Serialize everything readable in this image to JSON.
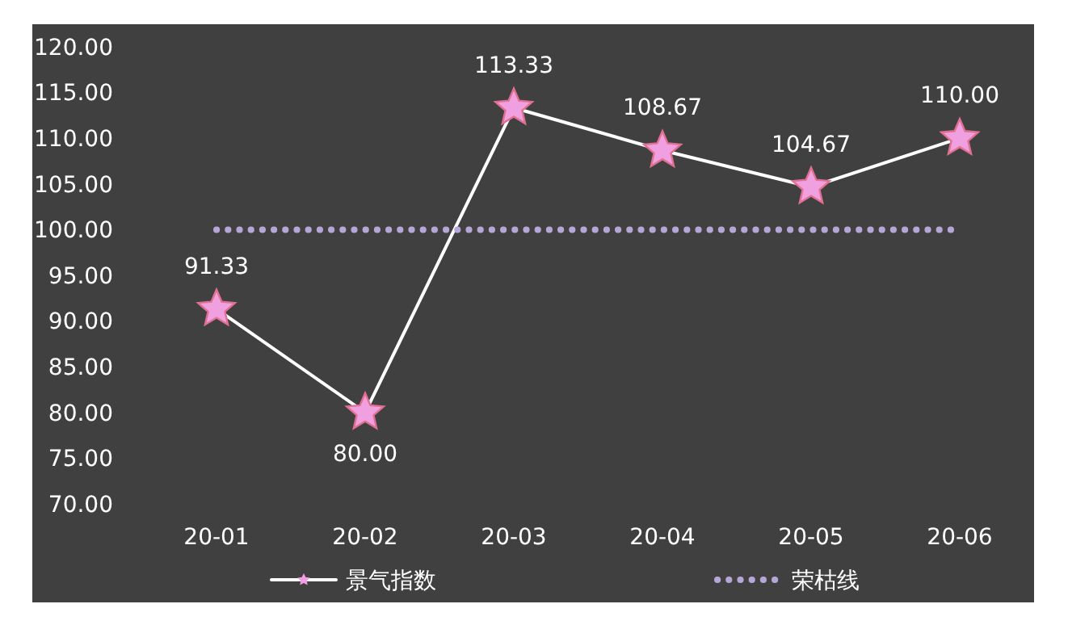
{
  "chart_data": {
    "type": "line",
    "categories": [
      "20-01",
      "20-02",
      "20-03",
      "20-04",
      "20-05",
      "20-06"
    ],
    "series": [
      {
        "name": "景气指数",
        "color": "#ffffff",
        "marker": "star",
        "line_style": "solid",
        "values": [
          91.33,
          80,
          113.33,
          108.67,
          104.67,
          110
        ],
        "value_labels": [
          "91.33",
          "80.00",
          "113.33",
          "108.67",
          "104.67",
          "110.00"
        ]
      },
      {
        "name": "荣枯线",
        "color": "#b4a7d6",
        "marker": "none",
        "line_style": "dotted",
        "values": [
          100,
          100,
          100,
          100,
          100,
          100
        ]
      }
    ],
    "ylim": [
      70,
      120
    ],
    "yticks": [
      {
        "value": 70,
        "label": "70.00"
      },
      {
        "value": 75,
        "label": "75.00"
      },
      {
        "value": 80,
        "label": "80.00"
      },
      {
        "value": 85,
        "label": "85.00"
      },
      {
        "value": 90,
        "label": "90.00"
      },
      {
        "value": 95,
        "label": "95.00"
      },
      {
        "value": 100,
        "label": "100.00"
      },
      {
        "value": 105,
        "label": "105.00"
      },
      {
        "value": 110,
        "label": "110.00"
      },
      {
        "value": 115,
        "label": "115.00"
      },
      {
        "value": 120,
        "label": "120.00"
      }
    ],
    "grid": false,
    "legend": "bottom"
  }
}
